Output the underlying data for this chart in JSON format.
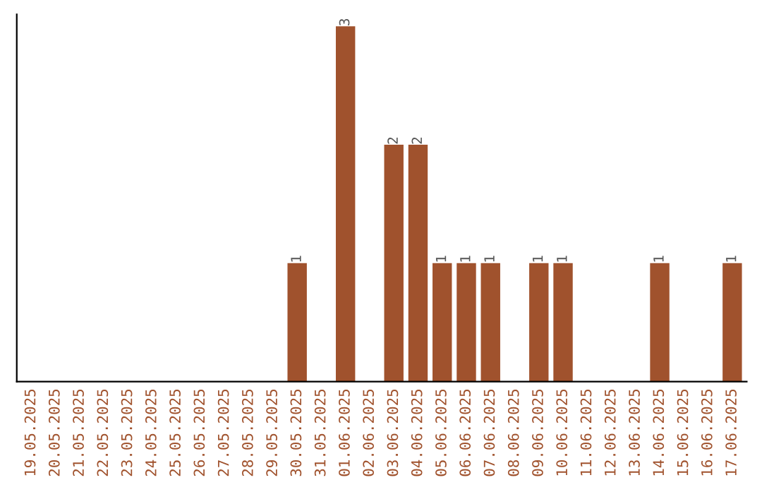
{
  "chart_data": {
    "type": "bar",
    "categories": [
      "19.05.2025",
      "20.05.2025",
      "21.05.2025",
      "22.05.2025",
      "23.05.2025",
      "24.05.2025",
      "25.05.2025",
      "26.05.2025",
      "27.05.2025",
      "28.05.2025",
      "29.05.2025",
      "30.05.2025",
      "31.05.2025",
      "01.06.2025",
      "02.06.2025",
      "03.06.2025",
      "04.06.2025",
      "05.06.2025",
      "06.06.2025",
      "07.06.2025",
      "08.06.2025",
      "09.06.2025",
      "10.06.2025",
      "11.06.2025",
      "12.06.2025",
      "13.06.2025",
      "14.06.2025",
      "15.06.2025",
      "16.06.2025",
      "17.06.2025"
    ],
    "values": [
      0,
      0,
      0,
      0,
      0,
      0,
      0,
      0,
      0,
      0,
      0,
      1,
      0,
      3,
      0,
      2,
      2,
      1,
      1,
      1,
      0,
      1,
      1,
      0,
      0,
      0,
      1,
      0,
      0,
      1
    ],
    "value_labels": [
      null,
      null,
      null,
      null,
      null,
      null,
      null,
      null,
      null,
      null,
      null,
      "1",
      null,
      "3",
      null,
      "2",
      "2",
      "1",
      "1",
      "1",
      null,
      "1",
      "1",
      null,
      null,
      null,
      "1",
      null,
      null,
      "1"
    ],
    "color": "#a0522d",
    "ylim": [
      0,
      3.1
    ],
    "tick_labels": "x",
    "grid": false,
    "legend": false
  }
}
